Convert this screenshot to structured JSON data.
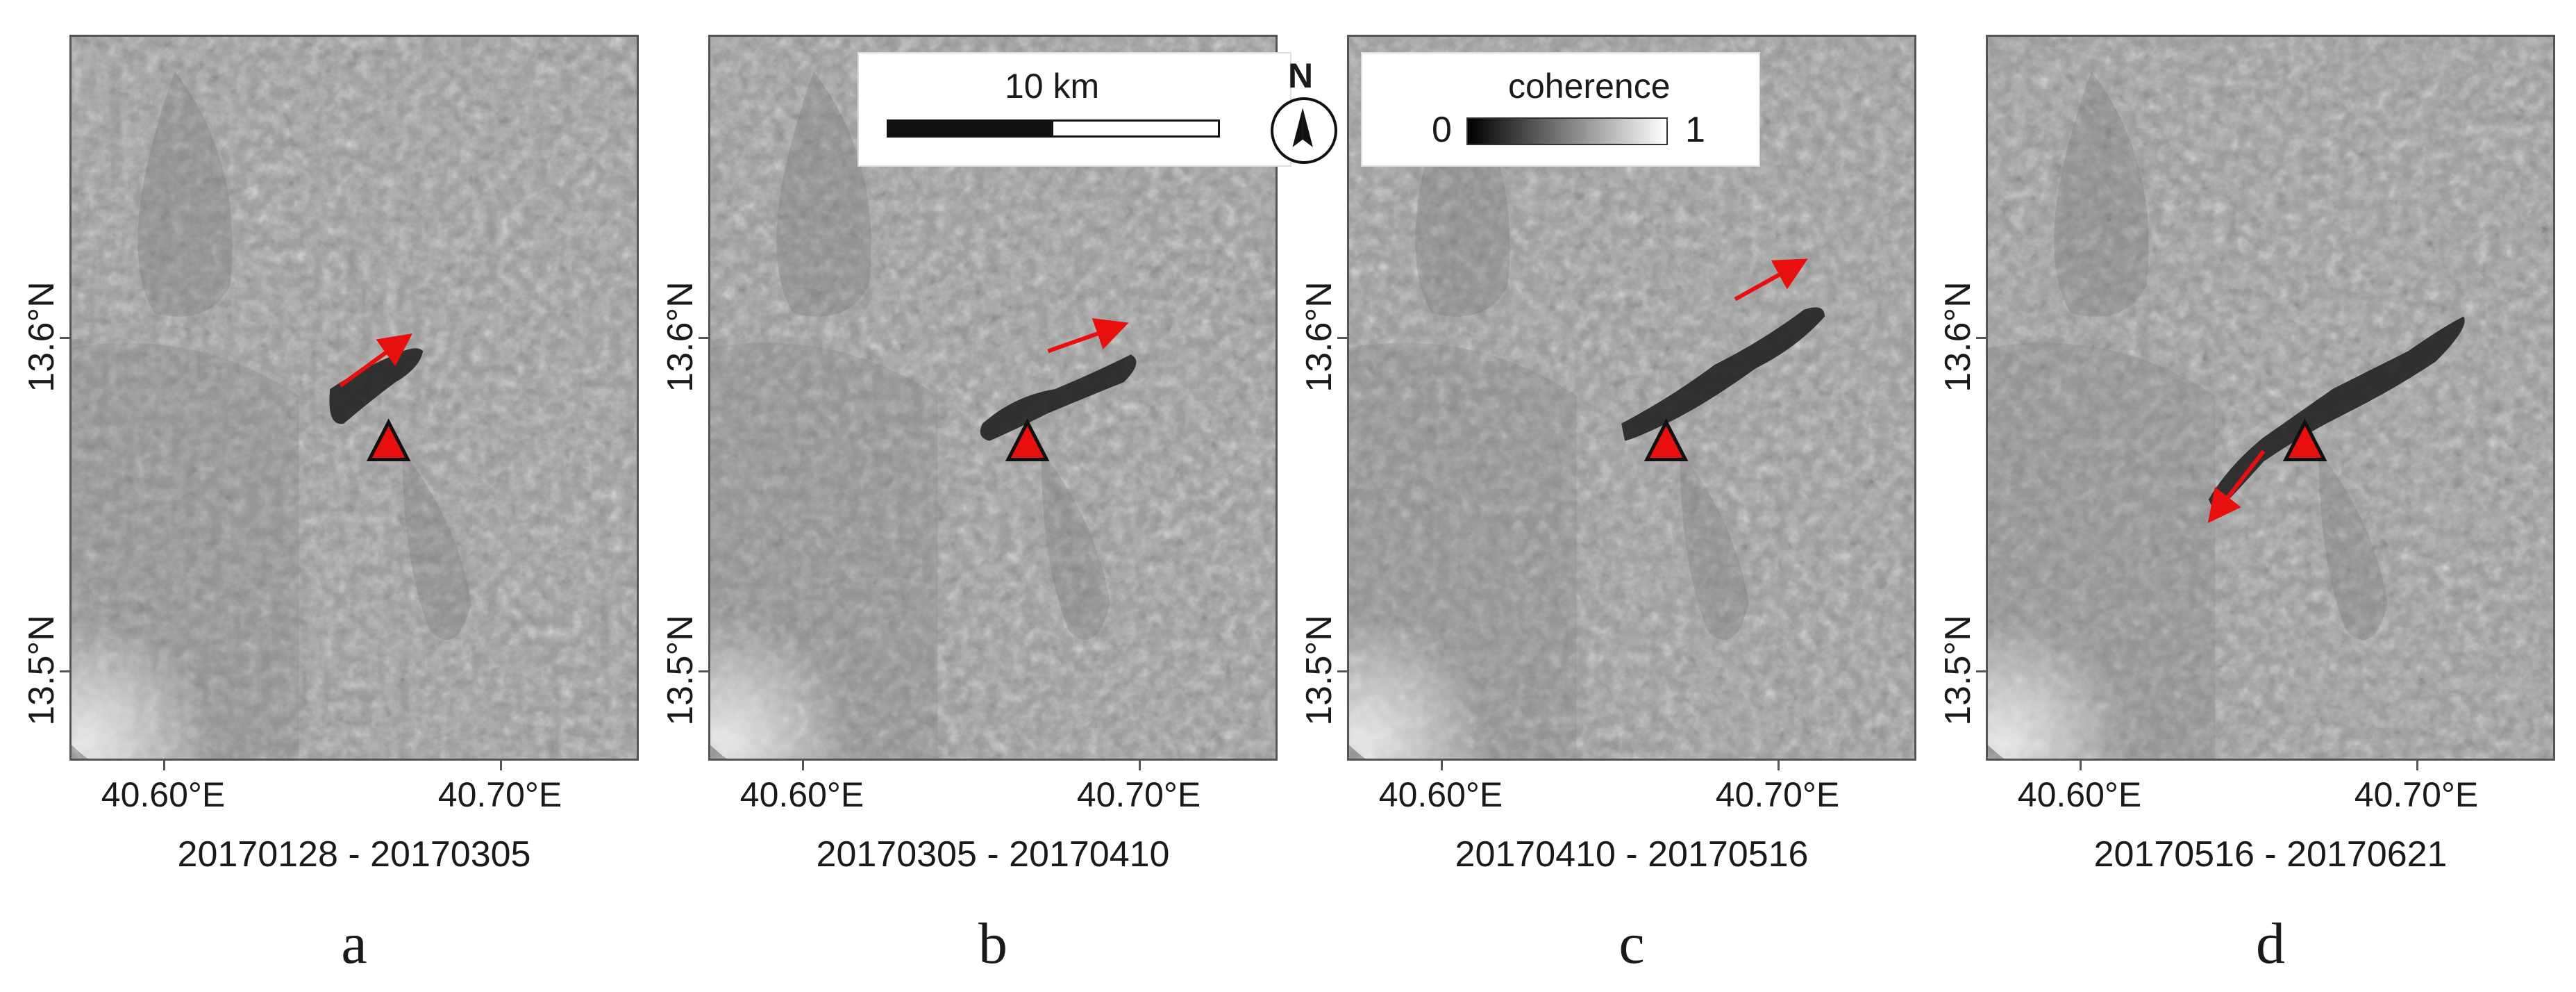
{
  "panels": [
    {
      "date_range": "20170128 - 20170305",
      "letter": "a"
    },
    {
      "date_range": "20170305 - 20170410",
      "letter": "b"
    },
    {
      "date_range": "20170410 - 20170516",
      "letter": "c"
    },
    {
      "date_range": "20170516 - 20170621",
      "letter": "d"
    }
  ],
  "axes": {
    "x_ticks": [
      "40.60°E",
      "40.70°E"
    ],
    "y_ticks": [
      "13.6°N",
      "13.5°N"
    ]
  },
  "scale_bar": {
    "label": "10 km"
  },
  "north_arrow": {
    "label": "N",
    "icon": "north-arrow-icon"
  },
  "legend": {
    "title": "coherence",
    "min": "0",
    "max": "1",
    "gradient": [
      "#000000",
      "#ffffff"
    ]
  },
  "colors": {
    "vent_marker": "#e8100f",
    "flow_arrow": "#e8100f"
  }
}
